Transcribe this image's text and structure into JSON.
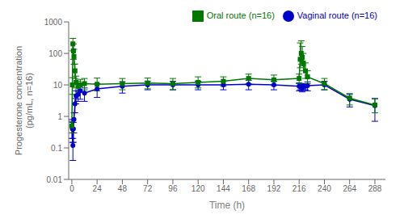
{
  "chart_data": {
    "type": "line",
    "x": [
      0,
      0.5,
      1,
      1.5,
      2,
      3,
      4,
      6,
      8,
      12,
      24,
      48,
      72,
      96,
      120,
      144,
      168,
      192,
      216,
      217,
      218,
      219,
      220,
      222,
      224,
      240,
      264,
      288
    ],
    "series": [
      {
        "name": "Vaginal route (n=16)",
        "color": "#0000cc",
        "marker": "circle",
        "values": [
          0.5,
          0.4,
          0.12,
          0.4,
          0.8,
          2.5,
          4.5,
          5.0,
          6.5,
          5.5,
          7.5,
          9.0,
          10.0,
          10.0,
          10.0,
          10.0,
          10.5,
          10.0,
          9.0,
          9.0,
          8.5,
          8.0,
          9.0,
          9.0,
          9.5,
          10.0,
          3.5,
          2.2
        ],
        "error_low": [
          0.3,
          0.25,
          0.08,
          0.25,
          0.5,
          1.2,
          2.0,
          2.0,
          3.0,
          2.5,
          3.5,
          3.5,
          3.0,
          3.0,
          3.0,
          3.0,
          3.5,
          3.0,
          2.5,
          2.0,
          2.0,
          2.0,
          2.0,
          2.0,
          3.0,
          3.0,
          1.5,
          1.5
        ],
        "error_high": [
          0.3,
          0.25,
          0.08,
          0.25,
          0.5,
          1.2,
          2.0,
          2.0,
          3.0,
          2.5,
          3.5,
          3.5,
          3.0,
          3.0,
          3.0,
          3.0,
          3.5,
          3.0,
          2.5,
          2.0,
          2.0,
          2.0,
          2.0,
          2.0,
          3.0,
          3.0,
          1.5,
          1.5
        ]
      },
      {
        "name": "Oral route (n=16)",
        "color": "#007700",
        "marker": "square",
        "values": [
          0.5,
          10.0,
          200.0,
          120.0,
          80.0,
          28.0,
          12.0,
          9.0,
          10.0,
          11.0,
          10.5,
          11.0,
          11.5,
          11.0,
          12.0,
          13.0,
          16.0,
          14.5,
          16.0,
          65.0,
          100.0,
          75.0,
          50.0,
          28.0,
          18.0,
          11.0,
          3.8,
          2.3
        ],
        "error_low": [
          0.2,
          5.0,
          80.0,
          55.0,
          35.0,
          12.0,
          4.0,
          3.0,
          4.0,
          4.0,
          4.0,
          4.0,
          4.0,
          4.0,
          4.0,
          4.0,
          5.0,
          5.0,
          5.0,
          30.0,
          55.0,
          35.0,
          22.0,
          12.0,
          7.0,
          4.0,
          1.5,
          1.0
        ],
        "error_high": [
          0.2,
          7.0,
          100.0,
          80.0,
          55.0,
          18.0,
          7.0,
          4.0,
          5.0,
          5.0,
          6.0,
          5.0,
          5.0,
          5.0,
          6.0,
          5.0,
          6.0,
          6.0,
          6.0,
          150.0,
          150.0,
          90.0,
          50.0,
          22.0,
          10.0,
          5.0,
          1.5,
          1.3
        ]
      }
    ],
    "xlabel": "Time (h)",
    "ylabel": "Progesterone concentration\n(pg/mL, n=16)",
    "xlim": [
      -3,
      298
    ],
    "xticks": [
      0,
      24,
      48,
      72,
      96,
      120,
      144,
      168,
      192,
      216,
      240,
      264,
      288
    ],
    "ylim": [
      0.01,
      1000
    ],
    "yticks": [
      0.01,
      0.1,
      1,
      10,
      100,
      1000
    ],
    "log": "y",
    "legend": "upper right",
    "grid": false
  }
}
